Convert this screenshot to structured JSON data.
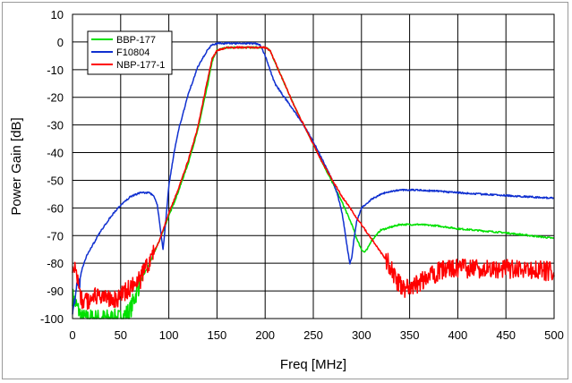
{
  "chart_data": {
    "type": "line",
    "title": "",
    "xlabel": "Freq [MHz]",
    "ylabel": "Power Gain [dB]",
    "xlim": [
      0,
      500
    ],
    "ylim": [
      -100,
      10
    ],
    "xticks": [
      0,
      50,
      100,
      150,
      200,
      250,
      300,
      350,
      400,
      450,
      500
    ],
    "yticks": [
      10,
      0,
      -10,
      -20,
      -30,
      -40,
      -50,
      -60,
      -70,
      -80,
      -90,
      -100
    ],
    "grid": true,
    "legend_position": "top-left",
    "series": [
      {
        "name": "BBP-177",
        "color": "#00e000",
        "noisy_below_x": 70,
        "x": [
          0,
          5,
          10,
          20,
          30,
          40,
          50,
          60,
          65,
          70,
          80,
          90,
          100,
          110,
          120,
          130,
          140,
          145,
          150,
          160,
          180,
          200,
          205,
          210,
          220,
          230,
          240,
          250,
          260,
          270,
          280,
          290,
          295,
          300,
          303,
          306,
          310,
          320,
          340,
          360,
          380,
          400,
          450,
          500
        ],
        "y": [
          -92,
          -96,
          -100,
          -100,
          -100,
          -100,
          -100,
          -97,
          -92,
          -87,
          -80,
          -72,
          -63,
          -54,
          -44,
          -32,
          -16,
          -7,
          -3,
          -2,
          -2,
          -2,
          -3,
          -7,
          -15,
          -23,
          -30,
          -37,
          -44,
          -51,
          -58,
          -66,
          -71,
          -75,
          -76,
          -75,
          -72,
          -68,
          -66,
          -66,
          -66.5,
          -67.5,
          -69,
          -71
        ]
      },
      {
        "name": "F10804",
        "color": "#1030d0",
        "noisy_below_x": 8,
        "x": [
          0,
          5,
          10,
          15,
          20,
          30,
          40,
          50,
          60,
          70,
          80,
          85,
          88,
          90,
          92,
          94,
          96,
          98,
          100,
          105,
          110,
          120,
          130,
          140,
          145,
          150,
          160,
          170,
          180,
          190,
          195,
          200,
          205,
          210,
          220,
          230,
          240,
          250,
          260,
          270,
          275,
          280,
          283,
          286,
          288,
          290,
          292,
          295,
          300,
          310,
          320,
          330,
          340,
          350,
          360,
          380,
          400,
          450,
          500
        ],
        "y": [
          -95,
          -90,
          -82,
          -77,
          -74,
          -68,
          -63,
          -59,
          -56,
          -54.5,
          -54.5,
          -56,
          -59,
          -64,
          -70,
          -75,
          -68,
          -60,
          -52,
          -41,
          -32,
          -19,
          -9,
          -3,
          -1,
          -0.5,
          -0.5,
          -0.5,
          -0.5,
          -0.5,
          -1,
          -5,
          -10,
          -15,
          -20,
          -25,
          -30,
          -36,
          -43,
          -50,
          -55,
          -62,
          -69,
          -76,
          -80,
          -78,
          -72,
          -65,
          -60,
          -57,
          -55,
          -54,
          -53.5,
          -53.5,
          -53.5,
          -54,
          -54.5,
          -55.5,
          -56.5
        ]
      },
      {
        "name": "NBP-177-1",
        "color": "#ff0000",
        "noisy_below_x": 85,
        "noisy_above_x": 325,
        "x": [
          0,
          5,
          8,
          10,
          20,
          30,
          40,
          50,
          60,
          70,
          80,
          90,
          100,
          110,
          120,
          130,
          140,
          145,
          150,
          160,
          180,
          200,
          205,
          210,
          220,
          230,
          240,
          250,
          260,
          270,
          280,
          290,
          300,
          310,
          320,
          330,
          335,
          340,
          345,
          350,
          360,
          370,
          380,
          390,
          400,
          420,
          440,
          460,
          480,
          500
        ],
        "y": [
          -80,
          -85,
          -90,
          -95,
          -92,
          -93,
          -93,
          -92,
          -89,
          -86,
          -79,
          -72,
          -62,
          -53,
          -43,
          -31,
          -14,
          -6,
          -3,
          -2,
          -2,
          -2,
          -3,
          -7,
          -15,
          -23,
          -30,
          -37,
          -44,
          -50,
          -56,
          -61,
          -66,
          -71,
          -76,
          -81,
          -85,
          -88,
          -89,
          -89,
          -87,
          -85,
          -83,
          -82,
          -82,
          -82,
          -82,
          -82,
          -82.5,
          -83
        ]
      }
    ]
  }
}
